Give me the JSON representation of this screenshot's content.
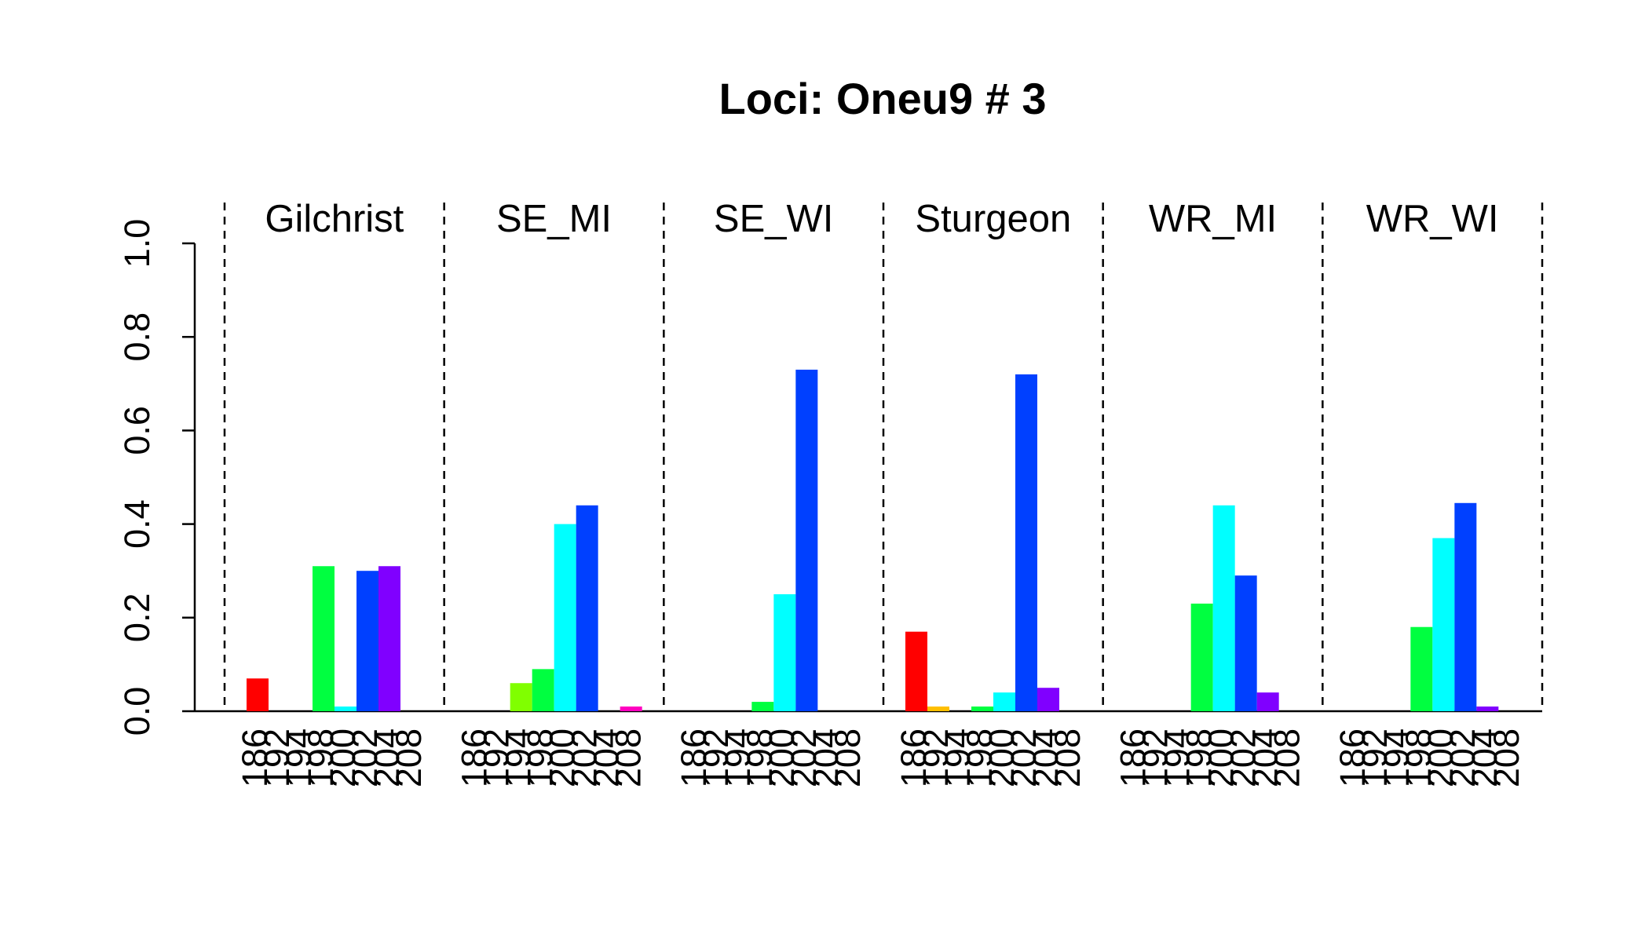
{
  "chart_data": {
    "type": "bar",
    "title": "Loci: Oneu9 # 3",
    "xlabel": "",
    "ylabel": "",
    "ylim": [
      0,
      1
    ],
    "yticks": [
      "0.0",
      "0.2",
      "0.4",
      "0.6",
      "0.8",
      "1.0"
    ],
    "categories": [
      "186",
      "192",
      "194",
      "198",
      "200",
      "202",
      "204",
      "208"
    ],
    "colors": [
      "#FF0000",
      "#FFBF00",
      "#80FF00",
      "#00FF40",
      "#00FFFF",
      "#0040FF",
      "#8000FF",
      "#FF00BF"
    ],
    "grid": false,
    "legend": "none",
    "panels": [
      {
        "name": "Gilchrist",
        "values": [
          0.07,
          0.0,
          0.0,
          0.31,
          0.01,
          0.3,
          0.31,
          0.0
        ]
      },
      {
        "name": "SE_MI",
        "values": [
          0.0,
          0.0,
          0.06,
          0.09,
          0.4,
          0.44,
          0.0,
          0.01
        ]
      },
      {
        "name": "SE_WI",
        "values": [
          0.0,
          0.0,
          0.0,
          0.02,
          0.25,
          0.73,
          0.0,
          0.0
        ]
      },
      {
        "name": "Sturgeon",
        "values": [
          0.17,
          0.01,
          0.0,
          0.01,
          0.04,
          0.72,
          0.05,
          0.0
        ]
      },
      {
        "name": "WR_MI",
        "values": [
          0.0,
          0.0,
          0.0,
          0.23,
          0.44,
          0.29,
          0.04,
          0.0
        ]
      },
      {
        "name": "WR_WI",
        "values": [
          0.0,
          0.0,
          0.0,
          0.18,
          0.37,
          0.445,
          0.01,
          0.0
        ]
      }
    ]
  }
}
